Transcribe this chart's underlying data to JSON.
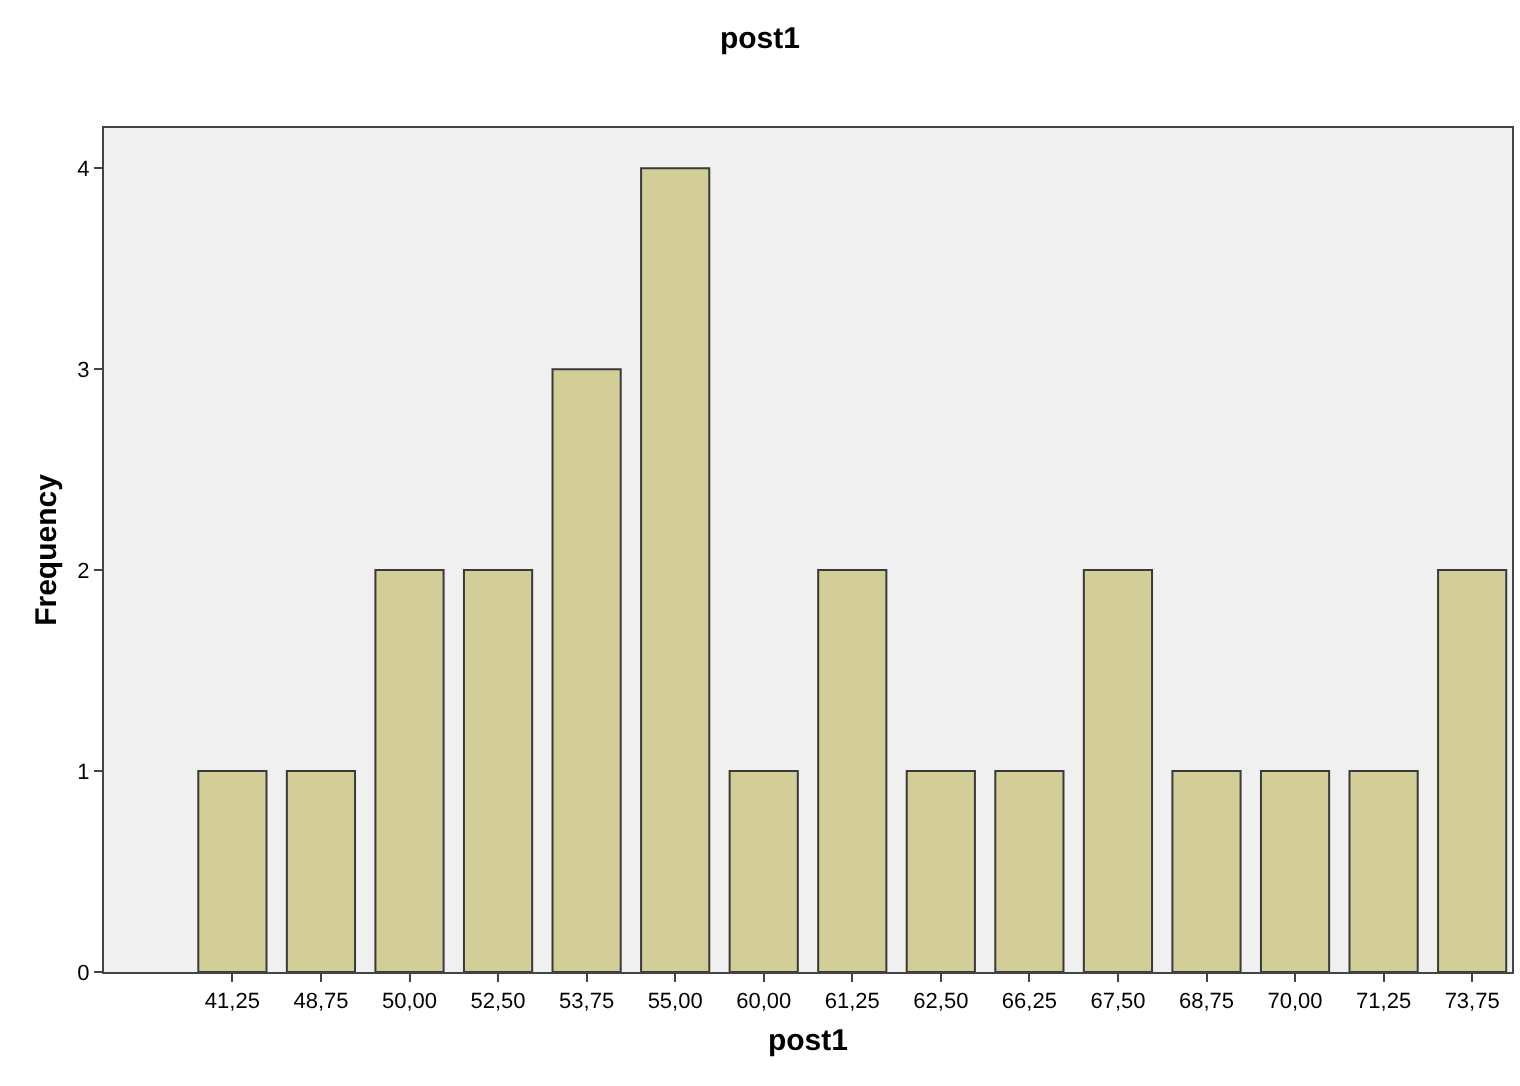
{
  "chart_data": {
    "type": "bar",
    "title": "post1",
    "xlabel": "post1",
    "ylabel": "Frequency",
    "categories": [
      "41,25",
      "48,75",
      "50,00",
      "52,50",
      "53,75",
      "55,00",
      "60,00",
      "61,25",
      "62,50",
      "66,25",
      "67,50",
      "68,75",
      "70,00",
      "71,25",
      "73,75"
    ],
    "values": [
      1,
      1,
      2,
      2,
      3,
      4,
      1,
      2,
      1,
      1,
      2,
      1,
      1,
      1,
      2
    ],
    "color": "#d3ce98",
    "ylim": [
      0,
      4.2
    ],
    "yticks": [
      0,
      1,
      2,
      3,
      4
    ]
  }
}
